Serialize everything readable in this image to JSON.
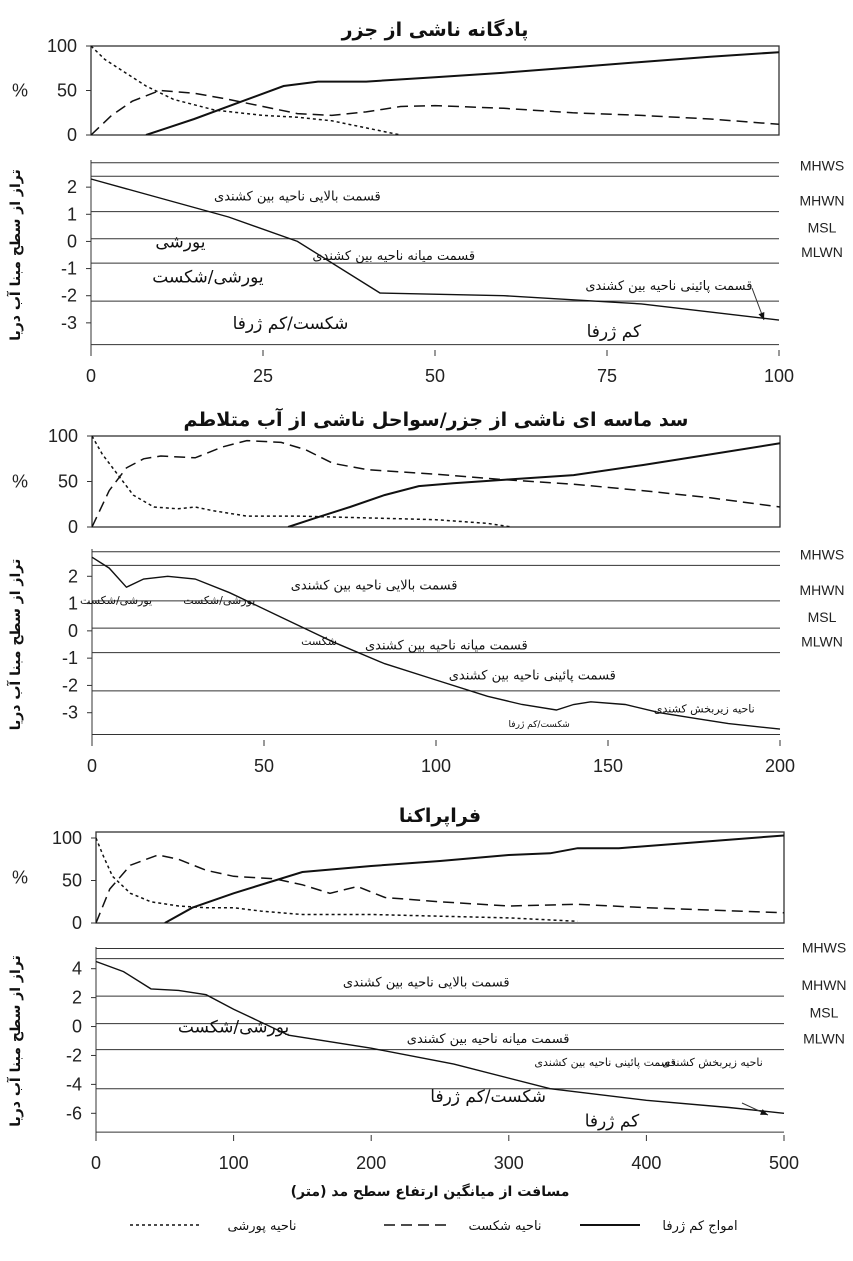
{
  "chart_data": [
    {
      "type": "line",
      "title": "پادگانه ناشی از جزر",
      "x_range": [
        0,
        100
      ],
      "x_ticks": [
        0,
        25,
        50,
        75,
        100
      ],
      "top_panel": {
        "ylabel": "%",
        "y_range": [
          0,
          100
        ],
        "y_ticks": [
          0,
          50,
          100
        ],
        "series": [
          {
            "style": "solid",
            "legend_ref": 0,
            "x": [
              8,
              15,
              22,
              28,
              33,
              40,
              50,
              60,
              70,
              80,
              90,
              100
            ],
            "y": [
              0,
              18,
              38,
              55,
              60,
              60,
              65,
              70,
              76,
              82,
              88,
              93
            ]
          },
          {
            "style": "dashed",
            "legend_ref": 1,
            "x": [
              0,
              3,
              6,
              10,
              15,
              20,
              25,
              30,
              35,
              40,
              45,
              50,
              60,
              70,
              80,
              90,
              100
            ],
            "y": [
              0,
              22,
              38,
              50,
              47,
              40,
              32,
              24,
              22,
              26,
              32,
              33,
              30,
              25,
              22,
              18,
              12
            ]
          },
          {
            "style": "dotted",
            "legend_ref": 2,
            "x": [
              0,
              2,
              5,
              8,
              12,
              18,
              25,
              30,
              35,
              40,
              45
            ],
            "y": [
              100,
              85,
              70,
              55,
              40,
              28,
              22,
              20,
              16,
              8,
              0
            ]
          }
        ]
      },
      "profile_panel": {
        "ylabel": "تراز از سطح مبنا آب دریا",
        "y_range": [
          -4,
          3
        ],
        "y_ticks": [
          2,
          1,
          0,
          -1,
          -2,
          -3
        ],
        "tide_levels": [
          {
            "label": "MHWS",
            "y": 2.4
          },
          {
            "label": "MHWN",
            "y": 1.1
          },
          {
            "label": "MSL",
            "y": 0.1
          },
          {
            "label": "MLWN",
            "y": -0.8
          }
        ],
        "extra_levels": [
          2.9,
          -2.2,
          -3.8
        ],
        "profile": {
          "x": [
            0,
            10,
            20,
            30,
            42,
            60,
            80,
            100
          ],
          "y": [
            2.3,
            1.6,
            0.9,
            0.0,
            -1.9,
            -2.0,
            -2.3,
            -2.9
          ]
        },
        "zones": [
          {
            "label": "قسمت بالایی ناحیه بین کشندی",
            "x": 30,
            "y": 1.7,
            "size": "zone"
          },
          {
            "label": "قسمت میانه ناحیه بین کشندی",
            "x": 44,
            "y": -0.5,
            "size": "zone"
          },
          {
            "label": "قسمت پائینی ناحیه بین کشندی",
            "x": 84,
            "y": -1.6,
            "size": "zone"
          }
        ],
        "processes": [
          {
            "label": "یورشی",
            "x": 13,
            "y": 0.0
          },
          {
            "label": "یورشی/شکست",
            "x": 17,
            "y": -1.3
          },
          {
            "label": "شکست/کم ژرفا",
            "x": 29,
            "y": -3.0
          },
          {
            "label": "کم ژرفا",
            "x": 76,
            "y": -3.3
          }
        ]
      }
    },
    {
      "type": "line",
      "title": "سد ماسه ای ناشی از جزر/سواحل ناشی از آب متلاطم",
      "x_range": [
        0,
        200
      ],
      "x_ticks": [
        0,
        50,
        100,
        150,
        200
      ],
      "top_panel": {
        "ylabel": "%",
        "y_range": [
          0,
          100
        ],
        "y_ticks": [
          0,
          50,
          100
        ],
        "series": [
          {
            "style": "solid",
            "legend_ref": 0,
            "x": [
              57,
              65,
              75,
              85,
              95,
              105,
              120,
              140,
              160,
              180,
              200
            ],
            "y": [
              0,
              10,
              22,
              35,
              45,
              48,
              52,
              57,
              68,
              80,
              92
            ]
          },
          {
            "style": "dashed",
            "legend_ref": 1,
            "x": [
              0,
              5,
              10,
              15,
              20,
              30,
              38,
              45,
              55,
              62,
              70,
              80,
              100,
              120,
              140,
              160,
              180,
              200
            ],
            "y": [
              0,
              40,
              65,
              75,
              78,
              76,
              88,
              95,
              93,
              85,
              70,
              63,
              58,
              52,
              47,
              40,
              32,
              22
            ]
          },
          {
            "style": "dotted",
            "legend_ref": 2,
            "x": [
              0,
              3,
              8,
              12,
              18,
              25,
              30,
              35,
              45,
              60,
              80,
              100,
              115,
              122
            ],
            "y": [
              100,
              80,
              55,
              35,
              22,
              20,
              22,
              18,
              12,
              12,
              10,
              8,
              4,
              0
            ]
          }
        ]
      },
      "profile_panel": {
        "ylabel": "تراز از سطح مبنا آب دریا",
        "y_range": [
          -4,
          3
        ],
        "y_ticks": [
          2,
          1,
          0,
          -1,
          -2,
          -3
        ],
        "tide_levels": [
          {
            "label": "MHWS",
            "y": 2.4
          },
          {
            "label": "MHWN",
            "y": 1.1
          },
          {
            "label": "MSL",
            "y": 0.1
          },
          {
            "label": "MLWN",
            "y": -0.8
          }
        ],
        "extra_levels": [
          2.9,
          -2.2,
          -3.8
        ],
        "profile": {
          "x": [
            0,
            5,
            10,
            15,
            22,
            30,
            40,
            55,
            70,
            85,
            100,
            115,
            125,
            135,
            140,
            145,
            155,
            165,
            175,
            185,
            200
          ],
          "y": [
            2.7,
            2.3,
            1.6,
            1.9,
            2.0,
            1.9,
            1.4,
            0.5,
            -0.4,
            -1.2,
            -1.8,
            -2.4,
            -2.7,
            -2.9,
            -2.7,
            -2.6,
            -2.7,
            -3.0,
            -3.2,
            -3.4,
            -3.6
          ]
        },
        "zones": [
          {
            "label": "قسمت بالایی ناحیه بین کشندی",
            "x": 82,
            "y": 1.7,
            "size": "zone"
          },
          {
            "label": "قسمت میانه ناحیه بین کشندی",
            "x": 103,
            "y": -0.5,
            "size": "zone"
          },
          {
            "label": "قسمت پائینی ناحیه بین کشندی",
            "x": 128,
            "y": -1.6,
            "size": "zone"
          },
          {
            "label": "ناحیه زیربخش کشندی",
            "x": 178,
            "y": -2.8,
            "size": "zone-sm"
          }
        ],
        "processes": [
          {
            "label": "یورشی/شکست",
            "x": 7,
            "y": 1.2,
            "size": "proc-sm"
          },
          {
            "label": "یورشی/شکست",
            "x": 37,
            "y": 1.2,
            "size": "proc-sm"
          },
          {
            "label": "شکست",
            "x": 66,
            "y": -0.3,
            "size": "proc-sm"
          },
          {
            "label": "شکست/کم ژرفا",
            "x": 130,
            "y": -3.3,
            "size": "zone-xs"
          }
        ]
      }
    },
    {
      "type": "line",
      "title": "فراپراکنا",
      "x_range": [
        0,
        500
      ],
      "x_ticks": [
        0,
        100,
        200,
        300,
        400,
        500
      ],
      "top_panel": {
        "ylabel": "%",
        "y_range": [
          0,
          100
        ],
        "y_ticks": [
          0,
          50,
          100
        ],
        "series": [
          {
            "style": "solid",
            "legend_ref": 0,
            "x": [
              50,
              70,
              100,
              130,
              150,
              200,
              250,
              300,
              330,
              350,
              380,
              420,
              460,
              500
            ],
            "y": [
              0,
              18,
              35,
              50,
              60,
              67,
              73,
              80,
              82,
              88,
              88,
              93,
              98,
              103
            ]
          },
          {
            "style": "dashed",
            "legend_ref": 1,
            "x": [
              0,
              10,
              25,
              45,
              60,
              80,
              100,
              130,
              150,
              170,
              190,
              210,
              250,
              300,
              350,
              400,
              450,
              500
            ],
            "y": [
              0,
              40,
              68,
              80,
              75,
              62,
              55,
              52,
              45,
              35,
              43,
              30,
              25,
              20,
              22,
              18,
              15,
              12
            ]
          },
          {
            "style": "dotted",
            "legend_ref": 2,
            "x": [
              0,
              5,
              12,
              25,
              40,
              60,
              80,
              100,
              120,
              150,
              200,
              250,
              300,
              350
            ],
            "y": [
              100,
              80,
              55,
              35,
              25,
              20,
              18,
              18,
              14,
              10,
              10,
              8,
              6,
              2
            ]
          }
        ]
      },
      "profile_panel": {
        "ylabel": "تراز از سطح مبنا آب دریا",
        "y_range": [
          -7.5,
          5.5
        ],
        "y_ticks": [
          4,
          2,
          0,
          -2,
          -4,
          -6
        ],
        "tide_levels": [
          {
            "label": "MHWS",
            "y": 4.7
          },
          {
            "label": "MHWN",
            "y": 2.1
          },
          {
            "label": "MSL",
            "y": 0.2
          },
          {
            "label": "MLWN",
            "y": -1.6
          }
        ],
        "extra_levels": [
          5.4,
          -4.3,
          -7.3
        ],
        "profile": {
          "x": [
            0,
            20,
            40,
            60,
            80,
            100,
            140,
            200,
            260,
            330,
            400,
            460,
            500
          ],
          "y": [
            4.5,
            3.8,
            2.6,
            2.5,
            2.2,
            1.2,
            -0.6,
            -1.5,
            -2.6,
            -4.3,
            -5.1,
            -5.6,
            -6.0
          ]
        },
        "zones": [
          {
            "label": "قسمت بالایی ناحیه بین کشندی",
            "x": 240,
            "y": 3.1,
            "size": "zone"
          },
          {
            "label": "قسمت میانه ناحیه بین کشندی",
            "x": 285,
            "y": -0.8,
            "size": "zone"
          },
          {
            "label": "قسمت پائینی ناحیه بین کشندی",
            "x": 370,
            "y": -2.4,
            "size": "zone-sm"
          },
          {
            "label": "ناحیه زیربخش کشندی",
            "x": 448,
            "y": -2.4,
            "size": "zone-sm"
          }
        ],
        "processes": [
          {
            "label": "یورشی/شکست",
            "x": 100,
            "y": 0.0
          },
          {
            "label": "شکست/کم ژرفا",
            "x": 285,
            "y": -4.8
          },
          {
            "label": "کم ژرفا",
            "x": 375,
            "y": -6.5
          }
        ]
      }
    }
  ],
  "xlabel": "مسافت از میانگین ارتفاع سطح مد (متر)",
  "legend": [
    {
      "label": "امواج کم ژرفا",
      "style": "solid"
    },
    {
      "label": "ناحیه شکست",
      "style": "dashed"
    },
    {
      "label": "ناحیه پورشی",
      "style": "dotted"
    }
  ]
}
